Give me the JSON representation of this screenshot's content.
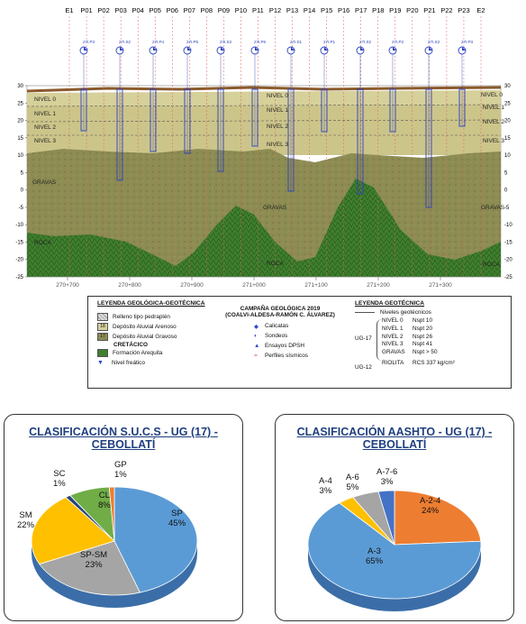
{
  "profile": {
    "top_labels": [
      "E1",
      "P01",
      "P02",
      "P03",
      "P04",
      "P05",
      "P06",
      "P07",
      "P08",
      "P09",
      "P10",
      "P11",
      "P12",
      "P13",
      "P14",
      "P15",
      "P16",
      "P17",
      "P18",
      "P19",
      "P20",
      "P21",
      "P22",
      "P23",
      "E2"
    ],
    "icon_labels": [
      "27I.P3",
      "27I.S2",
      "27I.P4",
      "27I.P5",
      "27I.S3",
      "27I.P6",
      "27I.S1",
      "27I.P1",
      "27I.S2",
      "27I.P2",
      "27I.S3",
      "27I.P3"
    ],
    "axis_left": [
      "30",
      "25",
      "20",
      "15",
      "10",
      "5",
      "0",
      "-5",
      "-10",
      "-15",
      "-20",
      "-25"
    ],
    "axis_right": [
      "30",
      "25",
      "20",
      "15",
      "10",
      "5",
      "0",
      "-5",
      "-10",
      "-15",
      "-20",
      "-25"
    ],
    "x_ticks": [
      "270+700",
      "270+800",
      "270+900",
      "271+000",
      "271+100",
      "271+200",
      "271+300"
    ],
    "layer_labels": {
      "nivel0": "NIVEL 0",
      "nivel1": "NIVEL 1",
      "nivel2": "NIVEL 2",
      "nivel3": "NIVEL 3",
      "gravas": "GRAVAS",
      "roca": "ROCA"
    }
  },
  "legend_left": {
    "title": "LEYENDA GEOLÓGICA-GEOTÉCNICA",
    "items": [
      "Relleno tipo pedraplén",
      "Depósito Aluvial Arenoso",
      "Depósito Aluvial Gravoso"
    ],
    "badge_arenoso": "18",
    "badge_gravoso": "17",
    "cretacico": "CRETÁCICO",
    "formacion": "Formación Arequita",
    "freatico": "Nivel freático"
  },
  "legend_mid": {
    "title1": "CAMPAÑA GEOLÓGICA 2019",
    "title2": "(COALVI-ALDESA-RAMÓN C. ÁLVAREZ)",
    "items": [
      "Calicatas",
      "Sondeos",
      "Ensayos DPSH",
      "Perfiles sísmicos"
    ]
  },
  "legend_right": {
    "title": "LEYENDA GEOTÉCNICA",
    "niveles": "Niveles geotécnicos",
    "ug17": "UG-17",
    "ug12": "UG-12",
    "rows": [
      {
        "name": "NIVEL 0",
        "value": "Nspt 10"
      },
      {
        "name": "NIVEL 1",
        "value": "Nspt 20"
      },
      {
        "name": "NIVEL 2",
        "value": "Nspt 26"
      },
      {
        "name": "NIVEL 3",
        "value": "Nspt 41"
      },
      {
        "name": "GRAVAS",
        "value": "Nspt > 50"
      },
      {
        "name": "RIOLITA",
        "value": "RCS 337 kg/cm²"
      }
    ]
  },
  "chart_data": [
    {
      "type": "pie",
      "title": "CLASIFICACIÓN  S.U.C.S  - UG (17) - CEBOLLATÍ",
      "slices": [
        {
          "name": "SP",
          "value": 45,
          "color": "#5b9bd5"
        },
        {
          "name": "SP-SM",
          "value": 23,
          "color": "#a5a5a5"
        },
        {
          "name": "SM",
          "value": 22,
          "color": "#ffc000"
        },
        {
          "name": "SC",
          "value": 1,
          "color": "#264478"
        },
        {
          "name": "CL",
          "value": 8,
          "color": "#70ad47"
        },
        {
          "name": "GP",
          "value": 1,
          "color": "#ed7d31"
        }
      ],
      "labels": [
        {
          "name": "SP",
          "pct": "45%"
        },
        {
          "name": "SP-SM",
          "pct": "23%"
        },
        {
          "name": "SM",
          "pct": "22%"
        },
        {
          "name": "SC",
          "pct": "1%"
        },
        {
          "name": "CL",
          "pct": "8%"
        },
        {
          "name": "GP",
          "pct": "1%"
        }
      ]
    },
    {
      "type": "pie",
      "title": "CLASIFICACIÓN  AASHTO  - UG (17) - CEBOLLATÍ",
      "slices": [
        {
          "name": "A-2-4",
          "value": 24,
          "color": "#ed7d31"
        },
        {
          "name": "A-3",
          "value": 65,
          "color": "#5b9bd5"
        },
        {
          "name": "A-4",
          "value": 3,
          "color": "#ffc000"
        },
        {
          "name": "A-6",
          "value": 5,
          "color": "#a5a5a5"
        },
        {
          "name": "A-7-6",
          "value": 3,
          "color": "#4472c4"
        }
      ],
      "labels": [
        {
          "name": "A-2-4",
          "pct": "24%"
        },
        {
          "name": "A-3",
          "pct": "65%"
        },
        {
          "name": "A-4",
          "pct": "3%"
        },
        {
          "name": "A-6",
          "pct": "5%"
        },
        {
          "name": "A-7-6",
          "pct": "3%"
        }
      ]
    }
  ]
}
